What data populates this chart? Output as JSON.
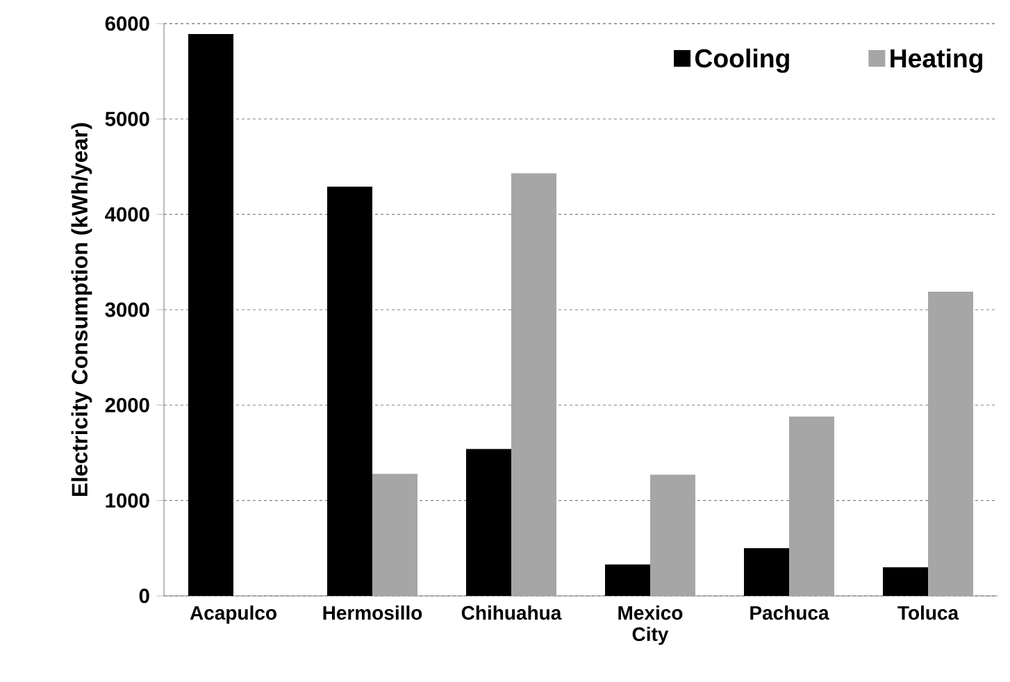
{
  "chart_data": {
    "type": "bar",
    "ylabel": "Electricity Consumption (kWh/year)",
    "categories": [
      "Acapulco",
      "Hermosillo",
      "Chihuahua",
      "Mexico City",
      "Pachuca",
      "Toluca"
    ],
    "series": [
      {
        "name": "Cooling",
        "color": "#000000",
        "values": [
          5890,
          4290,
          1540,
          330,
          500,
          300
        ]
      },
      {
        "name": "Heating",
        "color": "#a6a6a6",
        "values": [
          null,
          1280,
          4430,
          1270,
          1880,
          3190
        ]
      }
    ],
    "ylim": [
      0,
      6000
    ],
    "yticks": [
      0,
      1000,
      2000,
      3000,
      4000,
      5000,
      6000
    ],
    "grid": "y",
    "legend": "top right"
  }
}
